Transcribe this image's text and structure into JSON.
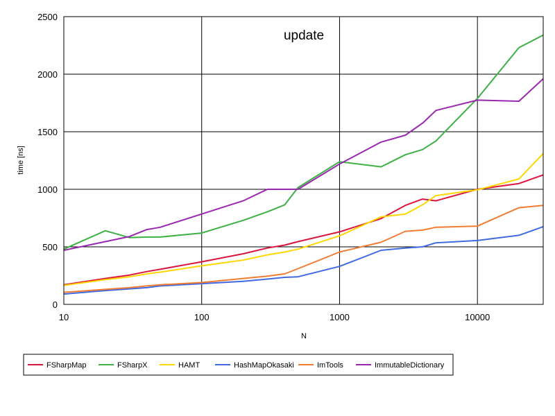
{
  "chart_data": {
    "type": "line",
    "title": "update",
    "xlabel": "N",
    "ylabel": "time [ns]",
    "x_scale": "log",
    "xlim": [
      10,
      30000
    ],
    "ylim": [
      0,
      2500
    ],
    "y_ticks": [
      0,
      500,
      1000,
      1500,
      2000,
      2500
    ],
    "x_ticks": [
      10,
      100,
      1000,
      10000
    ],
    "y_tick_labels": [
      "0",
      "500",
      "1000",
      "1500",
      "2000",
      "2500"
    ],
    "x_tick_labels": [
      "10",
      "100",
      "1000",
      "10000"
    ],
    "grid": true,
    "legend_position": "bottom",
    "x": [
      10,
      20,
      30,
      40,
      50,
      100,
      200,
      300,
      400,
      500,
      1000,
      2000,
      3000,
      4000,
      5000,
      10000,
      20000,
      30000
    ],
    "series": [
      {
        "name": "FSharpMap",
        "color": "#dc143c",
        "values": [
          170,
          225,
          255,
          285,
          305,
          370,
          440,
          490,
          515,
          545,
          630,
          745,
          860,
          915,
          900,
          1000,
          1050,
          1125
        ]
      },
      {
        "name": "FSharpX",
        "color": "#3cb043",
        "values": [
          480,
          640,
          580,
          585,
          585,
          620,
          730,
          805,
          865,
          1015,
          1240,
          1195,
          1300,
          1345,
          1420,
          1790,
          2230,
          2340
        ]
      },
      {
        "name": "HAMT",
        "color": "#ffd700",
        "values": [
          165,
          215,
          240,
          265,
          280,
          335,
          385,
          430,
          455,
          480,
          595,
          760,
          785,
          865,
          945,
          995,
          1090,
          1310
        ]
      },
      {
        "name": "HashMapOkasaki",
        "color": "#4169e1",
        "values": [
          90,
          120,
          135,
          145,
          160,
          180,
          200,
          220,
          235,
          240,
          330,
          470,
          490,
          500,
          535,
          555,
          600,
          675
        ]
      },
      {
        "name": "ImTools",
        "color": "#f07d32",
        "values": [
          105,
          130,
          145,
          160,
          170,
          190,
          225,
          245,
          265,
          310,
          455,
          540,
          635,
          645,
          670,
          680,
          840,
          860
        ]
      },
      {
        "name": "ImmutableDictionary",
        "color": "#9a27b0",
        "values": [
          470,
          545,
          590,
          650,
          670,
          785,
          900,
          1000,
          1000,
          1000,
          1220,
          1410,
          1470,
          1575,
          1685,
          1775,
          1765,
          1960
        ]
      }
    ]
  }
}
